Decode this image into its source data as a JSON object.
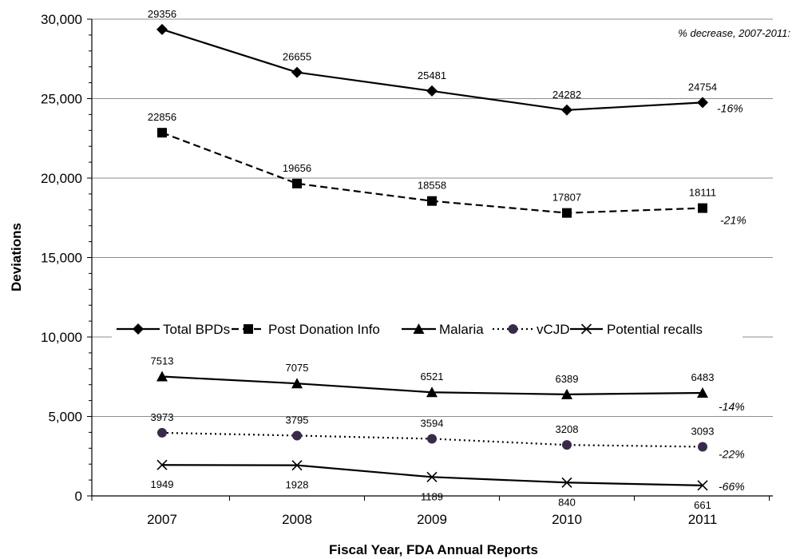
{
  "chart_data": {
    "type": "line",
    "title": "",
    "xlabel": "Fiscal Year, FDA Annual Reports",
    "ylabel": "Deviations",
    "categories": [
      "2007",
      "2008",
      "2009",
      "2010",
      "2011"
    ],
    "ylim": [
      0,
      30000
    ],
    "yticks": [
      0,
      5000,
      10000,
      15000,
      20000,
      25000,
      30000
    ],
    "ytick_labels": [
      "0",
      "5,000",
      "10,000",
      "15,000",
      "20,000",
      "25,000",
      "30,000"
    ],
    "grid": "horizontal",
    "legend_placement": "center",
    "note": "% decrease, 2007-2011:",
    "series": [
      {
        "name": "Total BPDs",
        "values": [
          29356,
          26655,
          25481,
          24282,
          24754
        ],
        "marker": "diamond",
        "line": "solid",
        "label_pos": "above",
        "pct_decrease": "-16%"
      },
      {
        "name": "Post Donation Info",
        "values": [
          22856,
          19656,
          18558,
          17807,
          18111
        ],
        "marker": "square",
        "line": "dashed",
        "label_pos": "above",
        "pct_decrease": "-21%"
      },
      {
        "name": "Malaria",
        "values": [
          7513,
          7075,
          6521,
          6389,
          6483
        ],
        "marker": "triangle",
        "line": "solid",
        "label_pos": "above",
        "pct_decrease": "-14%"
      },
      {
        "name": "vCJD",
        "values": [
          3973,
          3795,
          3594,
          3208,
          3093
        ],
        "marker": "circle",
        "line": "dotted",
        "label_pos": "above",
        "pct_decrease": "-22%",
        "marker_color": "#3a2a4a"
      },
      {
        "name": "Potential recalls",
        "values": [
          1949,
          1928,
          1189,
          840,
          661
        ],
        "marker": "x",
        "line": "solid",
        "label_pos": "below",
        "pct_decrease": "-66%"
      }
    ]
  }
}
